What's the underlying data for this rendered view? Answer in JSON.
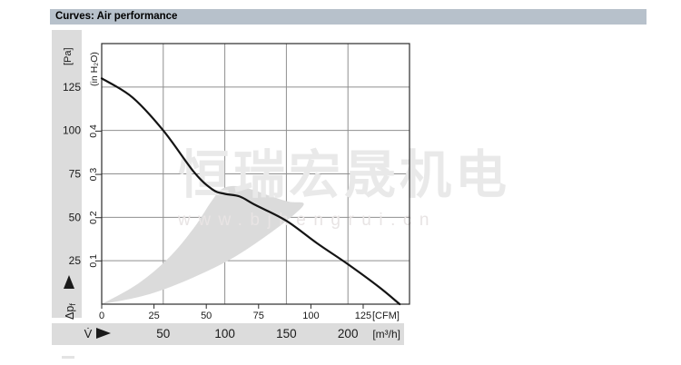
{
  "title_bar": {
    "label": "Curves: Air performance"
  },
  "watermark": {
    "line1": "恒瑞宏晟机电",
    "line2": "www.bjhengrui.cn"
  },
  "chart_data": {
    "type": "line",
    "title": "Curves: Air performance",
    "grid": true,
    "x_axis": {
      "axis_title": "V̇",
      "primary_unit": "[m³/h]",
      "primary_ticks": [
        50,
        100,
        150,
        200
      ],
      "primary_range": [
        0,
        250
      ],
      "secondary_unit": "[CFM]",
      "secondary_ticks": [
        0,
        25,
        50,
        75,
        100,
        125
      ],
      "cfm_to_m3h": 1.699
    },
    "y_axis": {
      "axis_title_main": "Δp",
      "axis_title_sub": "f",
      "primary_unit": "[Pa]",
      "primary_ticks": [
        25,
        50,
        75,
        100,
        125
      ],
      "primary_range": [
        0,
        150
      ],
      "secondary_unit": "(in H₂O)",
      "secondary_ticks": [
        0.1,
        0.2,
        0.3,
        0.4
      ],
      "pa_per_inh2o": 249
    },
    "series": [
      {
        "name": "air-performance-curve",
        "color": "#141414",
        "points_m3h_pa": [
          [
            0,
            130
          ],
          [
            25,
            119
          ],
          [
            50,
            100
          ],
          [
            75,
            76
          ],
          [
            90,
            66
          ],
          [
            100,
            63.5
          ],
          [
            112,
            62
          ],
          [
            125,
            57
          ],
          [
            150,
            48
          ],
          [
            175,
            35
          ],
          [
            200,
            23
          ],
          [
            225,
            10
          ],
          [
            242,
            0
          ]
        ]
      }
    ],
    "operating_range_area": {
      "color": "#dbdbdb",
      "lower_boundary_m3h_pa": [
        [
          0,
          0
        ],
        [
          35,
          5
        ],
        [
          70,
          14
        ],
        [
          105,
          26
        ],
        [
          135,
          40
        ],
        [
          157,
          52
        ],
        [
          164,
          58
        ]
      ],
      "upper_boundary_m3h_pa": [
        [
          0,
          0
        ],
        [
          30,
          12
        ],
        [
          55,
          27
        ],
        [
          75,
          44
        ],
        [
          88,
          58
        ],
        [
          97,
          66
        ],
        [
          108,
          68
        ],
        [
          122,
          66
        ],
        [
          138,
          62
        ],
        [
          152,
          59
        ],
        [
          164,
          58
        ]
      ]
    },
    "colors": {
      "grid": "#8f8f8f",
      "border": "#2b2b2b",
      "band": "#dcdcdc",
      "title_bar": "#b7c1cb"
    }
  }
}
